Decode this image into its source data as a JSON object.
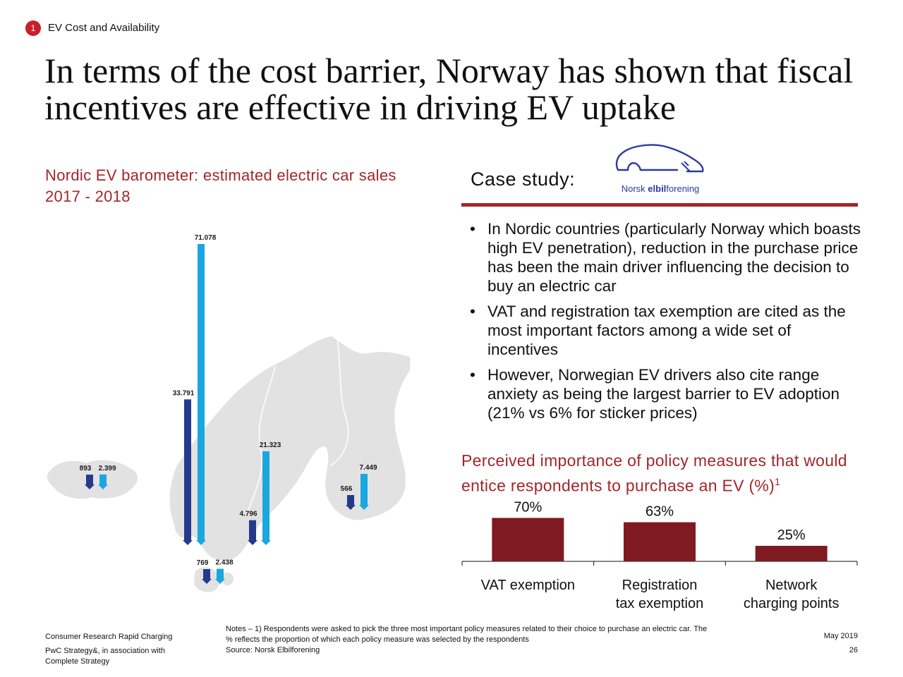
{
  "header": {
    "section_number": "1",
    "section_label": "EV Cost and Availability",
    "title": "In terms of the cost barrier, Norway has shown that fiscal incentives are effective in driving EV uptake"
  },
  "left": {
    "heading": "Nordic EV barometer: estimated electric car sales 2017 - 2018",
    "map": {
      "colors": {
        "y2017": "#243a8c",
        "y2018": "#1aa7df",
        "land": "#e2e2e2"
      },
      "countries": [
        {
          "name": "Iceland",
          "values": [
            "893",
            "2.399"
          ]
        },
        {
          "name": "Norway",
          "values": [
            "33.791",
            "71.078"
          ]
        },
        {
          "name": "Sweden",
          "values": [
            "4.796",
            "21.323"
          ]
        },
        {
          "name": "Finland",
          "values": [
            "566",
            "7.449"
          ]
        },
        {
          "name": "Denmark",
          "values": [
            "769",
            "2.438"
          ]
        }
      ]
    }
  },
  "right": {
    "case_study_label": "Case study:",
    "logo_text_pre": "Norsk ",
    "logo_text_bold": "elbil",
    "logo_text_post": "forening",
    "bullets": [
      "In Nordic countries (particularly Norway which boasts high EV penetration), reduction in the purchase price has been the main driver influencing the decision to buy an electric car",
      "VAT and registration tax exemption are cited as the most important factors among a wide set of incentives",
      "However, Norwegian EV drivers also cite range anxiety as being the largest barrier to EV adoption (21% vs 6% for sticker prices)"
    ],
    "chart_title": "Perceived importance of policy measures that would entice respondents to purchase an EV (%)",
    "chart_title_sup": "1"
  },
  "chart_data": {
    "type": "bar",
    "title": "Perceived importance of policy measures that would entice respondents to purchase an EV (%)",
    "categories": [
      [
        "VAT exemption"
      ],
      [
        "Registration",
        "tax exemption"
      ],
      [
        "Network",
        "charging points"
      ]
    ],
    "values": [
      70,
      63,
      25
    ],
    "value_labels": [
      "70%",
      "63%",
      "25%"
    ],
    "ylim": [
      0,
      100
    ],
    "bar_color": "#7f1a22",
    "grid": false
  },
  "footer": {
    "left_line1": "Consumer Research Rapid Charging",
    "left_line2": "PwC Strategy&, in association with",
    "left_line3": "Complete Strategy",
    "notes_line1": "Notes – 1) Respondents were asked to pick the three most important policy measures related to their choice to purchase an electric car. The",
    "notes_line2": "% reflects the proportion of which each policy measure was selected by the respondents",
    "source": "Source: Norsk Elbilforening",
    "date": "May 2019",
    "page": "26"
  }
}
